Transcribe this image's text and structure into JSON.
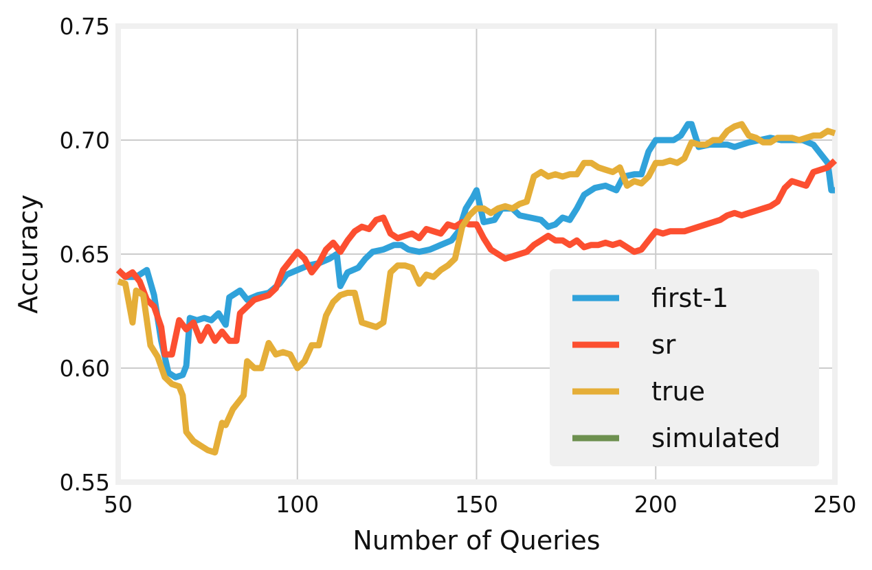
{
  "chart_data": {
    "type": "line",
    "xlabel": "Number of Queries",
    "ylabel": "Accuracy",
    "xlim": [
      50,
      250
    ],
    "ylim": [
      0.55,
      0.75
    ],
    "xticks": [
      50,
      100,
      150,
      200,
      250
    ],
    "xtick_labels": [
      "50",
      "100",
      "150",
      "200",
      "250"
    ],
    "yticks": [
      0.55,
      0.6,
      0.65,
      0.7,
      0.75
    ],
    "ytick_labels": [
      "0.55",
      "0.60",
      "0.65",
      "0.70",
      "0.75"
    ],
    "grid": true,
    "legend_position": "lower-right",
    "series": [
      {
        "name": "first-1",
        "color": "#30a2da",
        "points": [
          [
            50,
            0.643
          ],
          [
            52,
            0.64
          ],
          [
            55,
            0.64
          ],
          [
            58,
            0.643
          ],
          [
            60,
            0.632
          ],
          [
            62,
            0.612
          ],
          [
            64,
            0.598
          ],
          [
            66,
            0.596
          ],
          [
            68,
            0.597
          ],
          [
            69,
            0.601
          ],
          [
            70,
            0.622
          ],
          [
            72,
            0.621
          ],
          [
            74,
            0.622
          ],
          [
            76,
            0.621
          ],
          [
            78,
            0.624
          ],
          [
            80,
            0.619
          ],
          [
            81,
            0.631
          ],
          [
            84,
            0.634
          ],
          [
            86,
            0.63
          ],
          [
            89,
            0.632
          ],
          [
            92,
            0.633
          ],
          [
            95,
            0.637
          ],
          [
            97,
            0.641
          ],
          [
            100,
            0.643
          ],
          [
            103,
            0.645
          ],
          [
            106,
            0.646
          ],
          [
            109,
            0.648
          ],
          [
            111,
            0.65
          ],
          [
            112,
            0.636
          ],
          [
            114,
            0.642
          ],
          [
            117,
            0.644
          ],
          [
            119,
            0.648
          ],
          [
            121,
            0.651
          ],
          [
            124,
            0.652
          ],
          [
            127,
            0.654
          ],
          [
            129,
            0.654
          ],
          [
            131,
            0.652
          ],
          [
            134,
            0.651
          ],
          [
            137,
            0.652
          ],
          [
            140,
            0.654
          ],
          [
            143,
            0.656
          ],
          [
            145,
            0.66
          ],
          [
            147,
            0.67
          ],
          [
            149,
            0.675
          ],
          [
            150,
            0.678
          ],
          [
            152,
            0.664
          ],
          [
            155,
            0.665
          ],
          [
            157,
            0.67
          ],
          [
            160,
            0.67
          ],
          [
            162,
            0.667
          ],
          [
            165,
            0.666
          ],
          [
            168,
            0.665
          ],
          [
            170,
            0.662
          ],
          [
            172,
            0.663
          ],
          [
            174,
            0.666
          ],
          [
            176,
            0.665
          ],
          [
            178,
            0.67
          ],
          [
            180,
            0.676
          ],
          [
            183,
            0.679
          ],
          [
            186,
            0.68
          ],
          [
            189,
            0.678
          ],
          [
            191,
            0.684
          ],
          [
            194,
            0.685
          ],
          [
            196,
            0.685
          ],
          [
            198,
            0.695
          ],
          [
            200,
            0.7
          ],
          [
            203,
            0.7
          ],
          [
            205,
            0.7
          ],
          [
            207,
            0.702
          ],
          [
            209,
            0.707
          ],
          [
            210,
            0.707
          ],
          [
            212,
            0.697
          ],
          [
            215,
            0.698
          ],
          [
            218,
            0.698
          ],
          [
            220,
            0.698
          ],
          [
            222,
            0.697
          ],
          [
            224,
            0.698
          ],
          [
            226,
            0.699
          ],
          [
            229,
            0.7
          ],
          [
            232,
            0.701
          ],
          [
            235,
            0.7
          ],
          [
            238,
            0.7
          ],
          [
            241,
            0.7
          ],
          [
            244,
            0.698
          ],
          [
            246,
            0.694
          ],
          [
            248,
            0.69
          ],
          [
            249,
            0.678
          ],
          [
            250,
            0.678
          ]
        ]
      },
      {
        "name": "sr",
        "color": "#fc4f30",
        "points": [
          [
            50,
            0.643
          ],
          [
            52,
            0.64
          ],
          [
            54,
            0.642
          ],
          [
            56,
            0.638
          ],
          [
            58,
            0.63
          ],
          [
            60,
            0.627
          ],
          [
            62,
            0.618
          ],
          [
            63,
            0.606
          ],
          [
            65,
            0.606
          ],
          [
            67,
            0.621
          ],
          [
            69,
            0.617
          ],
          [
            71,
            0.62
          ],
          [
            73,
            0.612
          ],
          [
            75,
            0.618
          ],
          [
            77,
            0.612
          ],
          [
            79,
            0.616
          ],
          [
            81,
            0.612
          ],
          [
            83,
            0.612
          ],
          [
            84,
            0.624
          ],
          [
            86,
            0.627
          ],
          [
            88,
            0.63
          ],
          [
            90,
            0.631
          ],
          [
            92,
            0.632
          ],
          [
            94,
            0.635
          ],
          [
            96,
            0.643
          ],
          [
            98,
            0.647
          ],
          [
            100,
            0.651
          ],
          [
            102,
            0.648
          ],
          [
            104,
            0.642
          ],
          [
            106,
            0.646
          ],
          [
            108,
            0.652
          ],
          [
            110,
            0.655
          ],
          [
            112,
            0.651
          ],
          [
            114,
            0.656
          ],
          [
            116,
            0.66
          ],
          [
            118,
            0.662
          ],
          [
            120,
            0.661
          ],
          [
            122,
            0.665
          ],
          [
            124,
            0.666
          ],
          [
            126,
            0.659
          ],
          [
            128,
            0.657
          ],
          [
            130,
            0.658
          ],
          [
            132,
            0.659
          ],
          [
            134,
            0.657
          ],
          [
            136,
            0.661
          ],
          [
            138,
            0.66
          ],
          [
            140,
            0.659
          ],
          [
            142,
            0.663
          ],
          [
            144,
            0.662
          ],
          [
            146,
            0.664
          ],
          [
            148,
            0.663
          ],
          [
            150,
            0.663
          ],
          [
            152,
            0.657
          ],
          [
            154,
            0.652
          ],
          [
            156,
            0.65
          ],
          [
            158,
            0.648
          ],
          [
            160,
            0.649
          ],
          [
            162,
            0.65
          ],
          [
            164,
            0.651
          ],
          [
            166,
            0.654
          ],
          [
            168,
            0.656
          ],
          [
            170,
            0.658
          ],
          [
            172,
            0.656
          ],
          [
            174,
            0.656
          ],
          [
            176,
            0.654
          ],
          [
            178,
            0.656
          ],
          [
            180,
            0.653
          ],
          [
            182,
            0.654
          ],
          [
            184,
            0.654
          ],
          [
            186,
            0.655
          ],
          [
            188,
            0.654
          ],
          [
            190,
            0.655
          ],
          [
            192,
            0.653
          ],
          [
            194,
            0.651
          ],
          [
            196,
            0.652
          ],
          [
            198,
            0.656
          ],
          [
            200,
            0.66
          ],
          [
            202,
            0.659
          ],
          [
            204,
            0.66
          ],
          [
            206,
            0.66
          ],
          [
            208,
            0.66
          ],
          [
            210,
            0.661
          ],
          [
            212,
            0.662
          ],
          [
            214,
            0.663
          ],
          [
            216,
            0.664
          ],
          [
            218,
            0.665
          ],
          [
            220,
            0.667
          ],
          [
            222,
            0.668
          ],
          [
            224,
            0.667
          ],
          [
            226,
            0.668
          ],
          [
            228,
            0.669
          ],
          [
            230,
            0.67
          ],
          [
            232,
            0.671
          ],
          [
            234,
            0.673
          ],
          [
            236,
            0.679
          ],
          [
            238,
            0.682
          ],
          [
            240,
            0.681
          ],
          [
            242,
            0.68
          ],
          [
            244,
            0.686
          ],
          [
            246,
            0.687
          ],
          [
            248,
            0.688
          ],
          [
            250,
            0.691
          ]
        ]
      },
      {
        "name": "true",
        "color": "#e5ae38",
        "points": [
          [
            50,
            0.638
          ],
          [
            52,
            0.637
          ],
          [
            54,
            0.62
          ],
          [
            55,
            0.634
          ],
          [
            57,
            0.632
          ],
          [
            59,
            0.61
          ],
          [
            61,
            0.605
          ],
          [
            63,
            0.596
          ],
          [
            65,
            0.593
          ],
          [
            67,
            0.592
          ],
          [
            68,
            0.588
          ],
          [
            69,
            0.572
          ],
          [
            71,
            0.568
          ],
          [
            73,
            0.566
          ],
          [
            75,
            0.564
          ],
          [
            77,
            0.563
          ],
          [
            79,
            0.576
          ],
          [
            80,
            0.575
          ],
          [
            82,
            0.582
          ],
          [
            84,
            0.586
          ],
          [
            85,
            0.588
          ],
          [
            86,
            0.603
          ],
          [
            88,
            0.6
          ],
          [
            90,
            0.6
          ],
          [
            92,
            0.611
          ],
          [
            94,
            0.606
          ],
          [
            96,
            0.607
          ],
          [
            98,
            0.606
          ],
          [
            100,
            0.6
          ],
          [
            102,
            0.603
          ],
          [
            104,
            0.61
          ],
          [
            106,
            0.61
          ],
          [
            108,
            0.623
          ],
          [
            110,
            0.629
          ],
          [
            112,
            0.632
          ],
          [
            114,
            0.633
          ],
          [
            116,
            0.633
          ],
          [
            118,
            0.62
          ],
          [
            120,
            0.619
          ],
          [
            122,
            0.618
          ],
          [
            124,
            0.62
          ],
          [
            126,
            0.642
          ],
          [
            128,
            0.645
          ],
          [
            130,
            0.645
          ],
          [
            132,
            0.644
          ],
          [
            134,
            0.637
          ],
          [
            136,
            0.641
          ],
          [
            138,
            0.64
          ],
          [
            140,
            0.643
          ],
          [
            142,
            0.645
          ],
          [
            144,
            0.648
          ],
          [
            146,
            0.662
          ],
          [
            148,
            0.667
          ],
          [
            150,
            0.67
          ],
          [
            152,
            0.67
          ],
          [
            154,
            0.668
          ],
          [
            156,
            0.67
          ],
          [
            158,
            0.671
          ],
          [
            160,
            0.67
          ],
          [
            162,
            0.672
          ],
          [
            164,
            0.673
          ],
          [
            166,
            0.684
          ],
          [
            168,
            0.686
          ],
          [
            170,
            0.684
          ],
          [
            172,
            0.685
          ],
          [
            174,
            0.684
          ],
          [
            176,
            0.685
          ],
          [
            178,
            0.685
          ],
          [
            180,
            0.69
          ],
          [
            182,
            0.69
          ],
          [
            184,
            0.688
          ],
          [
            186,
            0.687
          ],
          [
            188,
            0.686
          ],
          [
            190,
            0.688
          ],
          [
            192,
            0.68
          ],
          [
            194,
            0.682
          ],
          [
            196,
            0.681
          ],
          [
            198,
            0.684
          ],
          [
            200,
            0.69
          ],
          [
            202,
            0.69
          ],
          [
            204,
            0.691
          ],
          [
            206,
            0.69
          ],
          [
            208,
            0.692
          ],
          [
            210,
            0.699
          ],
          [
            212,
            0.698
          ],
          [
            214,
            0.698
          ],
          [
            216,
            0.7
          ],
          [
            218,
            0.7
          ],
          [
            220,
            0.704
          ],
          [
            222,
            0.706
          ],
          [
            224,
            0.707
          ],
          [
            226,
            0.702
          ],
          [
            228,
            0.701
          ],
          [
            230,
            0.699
          ],
          [
            232,
            0.699
          ],
          [
            234,
            0.701
          ],
          [
            236,
            0.701
          ],
          [
            238,
            0.701
          ],
          [
            240,
            0.7
          ],
          [
            242,
            0.701
          ],
          [
            244,
            0.702
          ],
          [
            246,
            0.702
          ],
          [
            248,
            0.704
          ],
          [
            250,
            0.703
          ]
        ]
      },
      {
        "name": "simulated",
        "color": "#6d904f",
        "points": []
      }
    ]
  }
}
